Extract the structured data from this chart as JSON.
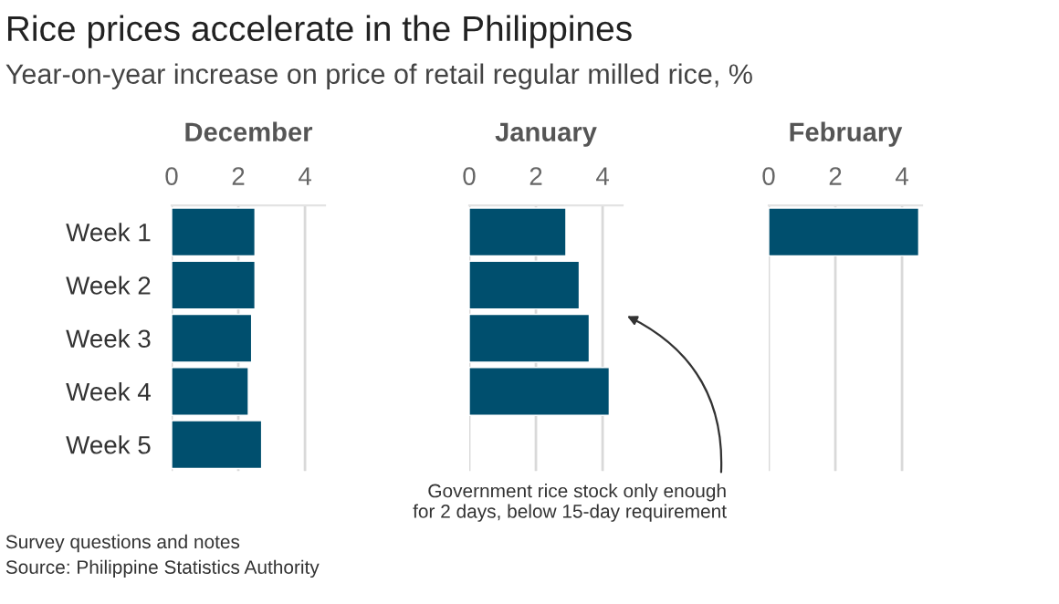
{
  "chart_data": [
    {
      "type": "bar",
      "orientation": "horizontal",
      "title": "Rice prices accelerate in the Philippines",
      "subtitle": "Year-on-year increase on price of retail regular milled rice, %",
      "xlabel": "December",
      "categories": [
        "Week 1",
        "Week 2",
        "Week 3",
        "Week 4",
        "Week 5"
      ],
      "values": [
        2.5,
        2.5,
        2.4,
        2.3,
        2.7
      ],
      "color": "#004f6e",
      "xlim": [
        0,
        4.6
      ],
      "xticks": [
        0,
        2,
        4
      ],
      "grid": "x",
      "annotations": [
        "Survey questions and notes",
        "Source: Philippine Statistics Authority"
      ]
    },
    {
      "type": "bar",
      "orientation": "horizontal",
      "xlabel": "January",
      "categories": [
        null,
        null,
        null,
        null,
        null
      ],
      "values": [
        2.9,
        3.3,
        3.6,
        4.2,
        null
      ],
      "color": "#004f6e",
      "xlim": [
        0,
        4.6
      ],
      "xticks": [
        0,
        2,
        4
      ],
      "grid": "x",
      "tick_labels": "x",
      "annotations": [
        "Government rice stock only enough\nfor 2 days, below 15-day requirement"
      ]
    },
    {
      "type": "bar",
      "orientation": "horizontal",
      "xlabel": "February",
      "categories": [
        null,
        null,
        null,
        null,
        null
      ],
      "values": [
        4.5,
        null,
        null,
        null,
        null
      ],
      "color": "#004f6e",
      "xlim": [
        0,
        4.6
      ],
      "xticks": [
        0,
        2,
        4
      ],
      "grid": "x",
      "tick_labels": "x"
    }
  ]
}
